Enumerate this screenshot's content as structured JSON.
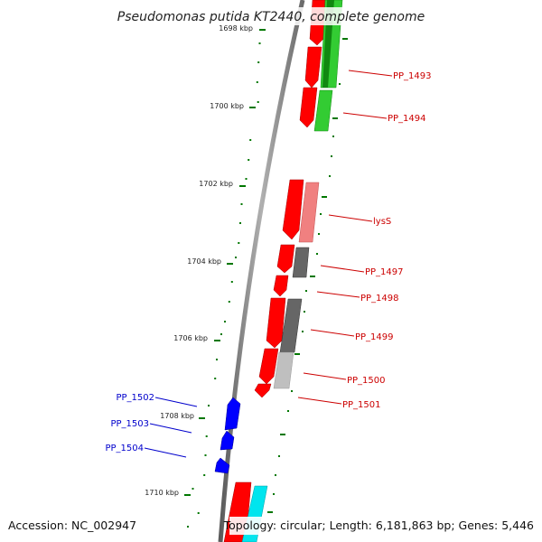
{
  "title": "Pseudomonas putida KT2440, complete genome",
  "accession": "Accession: NC_002947",
  "summary": "Topology: circular; Length: 6,181,863 bp; Genes: 5,446",
  "ticks": [
    {
      "label": "1698 kbp"
    },
    {
      "label": "1700 kbp"
    },
    {
      "label": "1702 kbp"
    },
    {
      "label": "1704 kbp"
    },
    {
      "label": "1706 kbp"
    },
    {
      "label": "1708 kbp"
    },
    {
      "label": "1710 kbp"
    }
  ],
  "gene_labels": [
    {
      "name": "PP_1493",
      "color": "#cc0000"
    },
    {
      "name": "PP_1494",
      "color": "#cc0000"
    },
    {
      "name": "lysS",
      "color": "#cc0000"
    },
    {
      "name": "PP_1497",
      "color": "#cc0000"
    },
    {
      "name": "PP_1498",
      "color": "#cc0000"
    },
    {
      "name": "PP_1499",
      "color": "#cc0000"
    },
    {
      "name": "PP_1500",
      "color": "#cc0000"
    },
    {
      "name": "PP_1501",
      "color": "#cc0000"
    },
    {
      "name": "PP_1502",
      "color": "#0000cc"
    },
    {
      "name": "PP_1503",
      "color": "#0000cc"
    },
    {
      "name": "PP_1504",
      "color": "#0000cc"
    }
  ],
  "colors": {
    "forward_cds": "#ff0000",
    "reverse_cds": "#0000ff",
    "backbone": "#808080",
    "ticks": "#007700",
    "cog_green": "#33cc33",
    "cog_pink": "#f08080",
    "cog_gray": "#666666",
    "cog_lightgray": "#bfbfbf",
    "cog_cyan": "#00e5ee"
  }
}
